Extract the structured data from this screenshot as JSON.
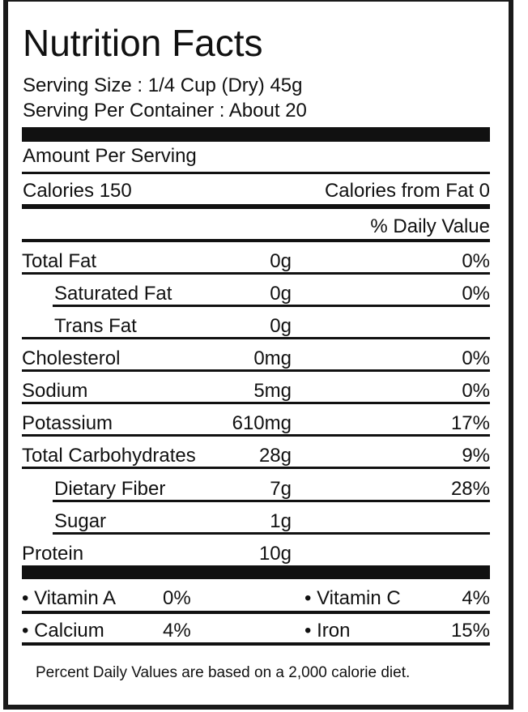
{
  "title": "Nutrition Facts",
  "serving_size": "Serving Size : 1/4 Cup (Dry) 45g",
  "servings_per_container": "Serving Per Container : About 20",
  "amount_per_serving": "Amount Per Serving",
  "calories": "Calories  150",
  "calories_from_fat": "Calories from Fat  0",
  "daily_value_header": "% Daily Value",
  "nutrients": [
    {
      "name": "Total Fat",
      "amount": "0g",
      "dv": "0%"
    },
    {
      "name": "Saturated Fat",
      "amount": "0g",
      "dv": "0%"
    },
    {
      "name": "Trans Fat",
      "amount": "0g",
      "dv": ""
    },
    {
      "name": "Cholesterol",
      "amount": "0mg",
      "dv": "0%"
    },
    {
      "name": "Sodium",
      "amount": "5mg",
      "dv": "0%"
    },
    {
      "name": "Potassium",
      "amount": "610mg",
      "dv": "17%"
    },
    {
      "name": "Total Carbohydrates",
      "amount": "28g",
      "dv": "9%"
    },
    {
      "name": "Dietary Fiber",
      "amount": "7g",
      "dv": "28%"
    },
    {
      "name": "Sugar",
      "amount": "1g",
      "dv": ""
    },
    {
      "name": "Protein",
      "amount": "10g",
      "dv": ""
    }
  ],
  "vitamins": [
    {
      "name": "• Vitamin A",
      "dv": "0%"
    },
    {
      "name": "• Vitamin C",
      "dv": "4%"
    },
    {
      "name": "• Calcium",
      "dv": "4%"
    },
    {
      "name": "• Iron",
      "dv": "15%"
    }
  ],
  "footnote": "Percent Daily Values are based on a 2,000 calorie diet."
}
